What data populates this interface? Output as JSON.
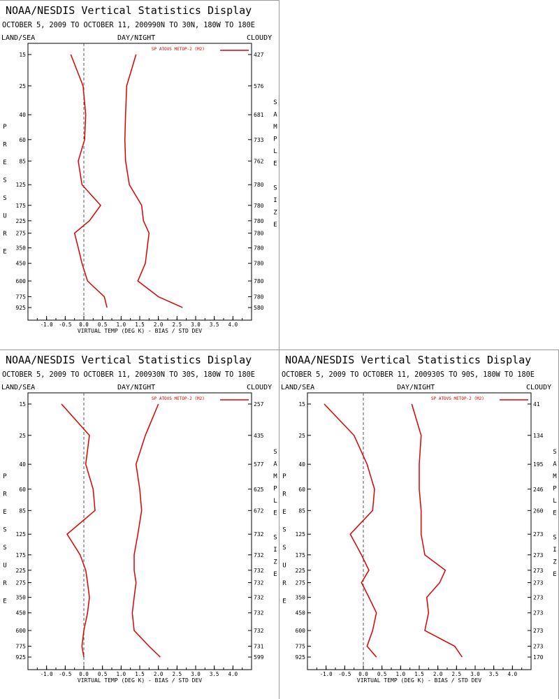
{
  "panels_common": {
    "header": "NOAA/NESDIS Vertical Statistics Display",
    "labels": {
      "left": "LAND/SEA",
      "middle": "DAY/NIGHT",
      "right": "CLOUDY"
    },
    "ylabel_letters": [
      "P",
      "R",
      "E",
      "S",
      "S",
      "U",
      "R",
      "E"
    ],
    "size_letters": [
      "S",
      "A",
      "M",
      "P",
      "L",
      "E",
      "",
      "S",
      "I",
      "Z",
      "E"
    ],
    "xlabel": "VIRTUAL TEMP (DEG K) - BIAS / STD DEV",
    "legend": "SP ATOVS METOP-2 (M2)",
    "line_color": "#dd0000",
    "xticks": [
      "-1.0",
      "-0.5",
      "0.0",
      "0.5",
      "1.0",
      "1.5",
      "2.0",
      "2.5",
      "3.0",
      "3.5",
      "4.0"
    ]
  },
  "chart_data": [
    {
      "type": "line",
      "subtitle": "OCTOBER 5, 2009 TO OCTOBER 11, 200990N TO 30N, 180W TO 180E",
      "xlim": [
        -1.5,
        4.5
      ],
      "y_scale": "log-pressure",
      "pressure_levels": [
        15,
        25,
        40,
        60,
        85,
        125,
        175,
        225,
        275,
        350,
        450,
        600,
        775,
        925
      ],
      "sample_size": [
        "427",
        "576",
        "681",
        "733",
        "762",
        "780",
        "780",
        "780",
        "780",
        "780",
        "780",
        "780",
        "780",
        "580"
      ],
      "series": [
        {
          "values": [
            -0.35,
            -0.02,
            0.05,
            0.02,
            -0.15,
            -0.05,
            0.45,
            0.15,
            -0.25,
            -0.15,
            -0.05,
            0.1,
            0.55,
            0.62
          ]
        },
        {
          "values": [
            1.4,
            1.15,
            1.12,
            1.1,
            1.12,
            1.22,
            1.55,
            1.6,
            1.75,
            1.7,
            1.65,
            1.45,
            2.0,
            2.65
          ]
        }
      ]
    },
    {
      "type": "line",
      "subtitle": "OCTOBER 5, 2009 TO OCTOBER 11, 200930N TO 30S, 180W TO 180E",
      "xlim": [
        -1.5,
        4.5
      ],
      "y_scale": "log-pressure",
      "pressure_levels": [
        15,
        25,
        40,
        60,
        85,
        125,
        175,
        225,
        275,
        350,
        450,
        600,
        775,
        925
      ],
      "sample_size": [
        "257",
        "435",
        "577",
        "625",
        "672",
        "732",
        "732",
        "732",
        "732",
        "732",
        "732",
        "732",
        "731",
        "599"
      ],
      "series": [
        {
          "values": [
            -0.6,
            0.15,
            0.05,
            0.25,
            0.3,
            -0.45,
            -0.1,
            0.05,
            0.1,
            0.15,
            0.1,
            0.0,
            -0.05,
            0.0
          ]
        },
        {
          "values": [
            2.0,
            1.65,
            1.4,
            1.5,
            1.55,
            1.45,
            1.35,
            1.35,
            1.4,
            1.35,
            1.3,
            1.35,
            1.75,
            2.05
          ]
        }
      ]
    },
    {
      "type": "line",
      "subtitle": "OCTOBER 5, 2009 TO OCTOBER 11, 200930S TO 90S, 180W TO 180E",
      "xlim": [
        -1.5,
        4.5
      ],
      "y_scale": "log-pressure",
      "pressure_levels": [
        15,
        25,
        40,
        60,
        85,
        125,
        175,
        225,
        275,
        350,
        450,
        600,
        775,
        925
      ],
      "sample_size": [
        "41",
        "134",
        "195",
        "246",
        "260",
        "273",
        "273",
        "273",
        "273",
        "273",
        "273",
        "273",
        "273",
        "170"
      ],
      "series": [
        {
          "values": [
            -1.05,
            -0.25,
            0.1,
            0.3,
            0.25,
            -0.35,
            -0.05,
            0.15,
            -0.05,
            0.15,
            0.35,
            0.25,
            0.1,
            0.35
          ]
        },
        {
          "values": [
            1.3,
            1.55,
            1.5,
            1.5,
            1.55,
            1.55,
            1.65,
            2.2,
            2.05,
            1.7,
            1.75,
            1.65,
            2.45,
            2.65
          ]
        }
      ]
    }
  ]
}
